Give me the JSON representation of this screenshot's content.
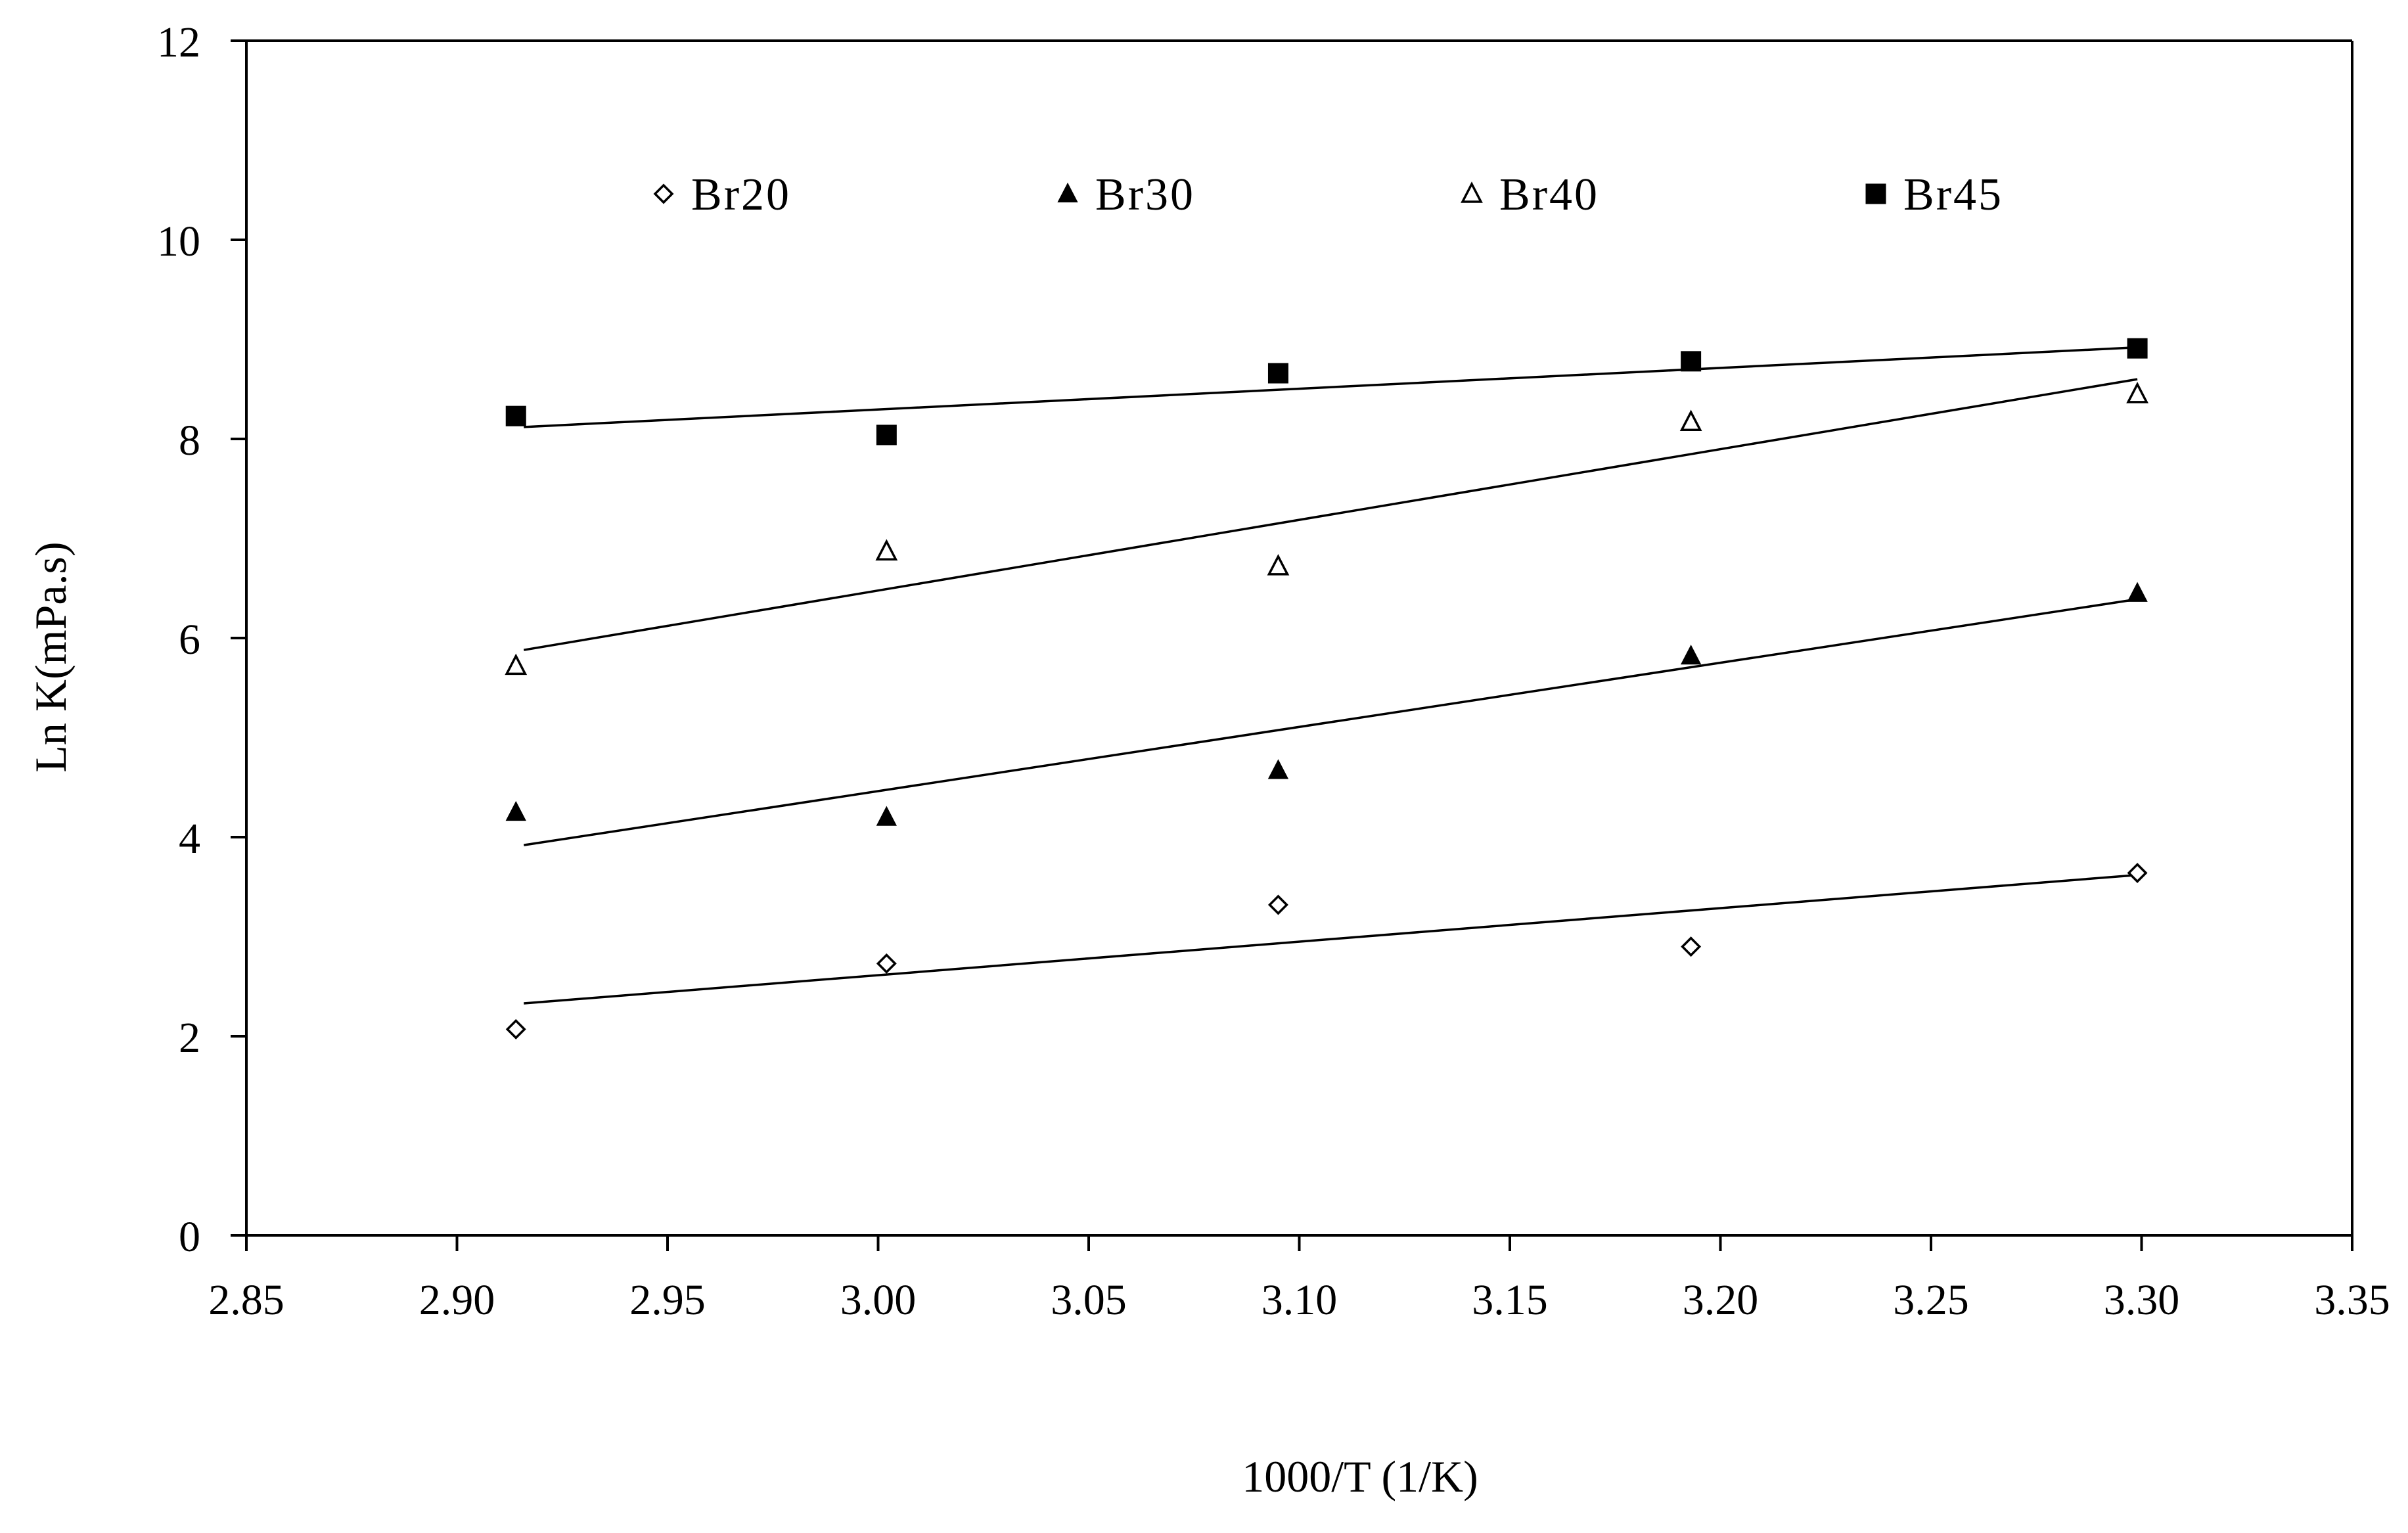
{
  "chart_data": {
    "type": "scatter",
    "title": "",
    "xlabel": "1000/T (1/K)",
    "ylabel": "Ln K(mPa.s)",
    "xlim": [
      2.85,
      3.35
    ],
    "ylim": [
      0,
      12
    ],
    "xticks": [
      "2.85",
      "2.90",
      "2.95",
      "3.00",
      "3.05",
      "3.10",
      "3.15",
      "3.20",
      "3.25",
      "3.30",
      "3.35"
    ],
    "yticks": [
      "0",
      "2",
      "4",
      "6",
      "8",
      "10",
      "12"
    ],
    "grid": false,
    "legend_position": "top",
    "x": [
      2.914,
      3.002,
      3.095,
      3.193,
      3.299
    ],
    "series": [
      {
        "name": "Br20",
        "marker": "open-diamond",
        "values": [
          2.07,
          2.73,
          3.32,
          2.9,
          3.64
        ],
        "fit": [
          2.33,
          3.62
        ]
      },
      {
        "name": "Br30",
        "marker": "filled-triangle",
        "values": [
          4.25,
          4.2,
          4.67,
          5.82,
          6.45
        ],
        "fit": [
          3.92,
          6.39
        ]
      },
      {
        "name": "Br40",
        "marker": "open-triangle",
        "values": [
          5.72,
          6.87,
          6.72,
          8.17,
          8.45
        ],
        "fit": [
          5.88,
          8.6
        ]
      },
      {
        "name": "Br45",
        "marker": "filled-square",
        "values": [
          8.23,
          8.04,
          8.66,
          8.78,
          8.91
        ],
        "fit": [
          8.12,
          8.92
        ]
      }
    ]
  }
}
